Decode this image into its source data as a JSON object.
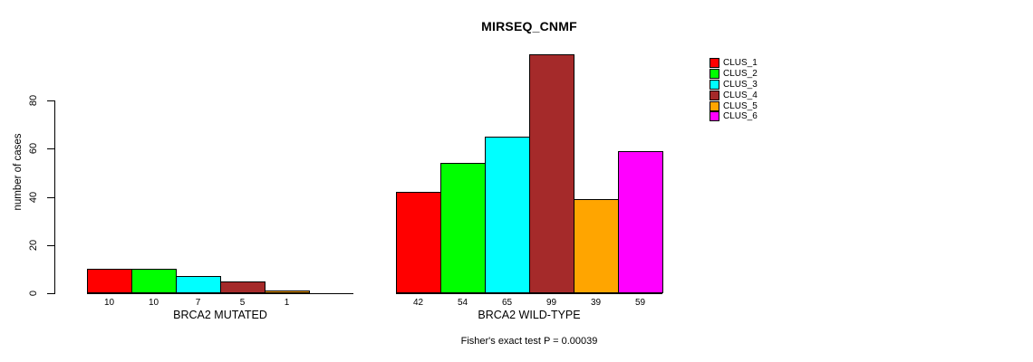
{
  "chart": {
    "title": "MIRSEQ_CNMF",
    "ylabel": "number of cases",
    "footnote": "Fisher's exact test P = 0.00039"
  },
  "legend": {
    "items": [
      {
        "label": "CLUS_1",
        "color": "#FF0000"
      },
      {
        "label": "CLUS_2",
        "color": "#00FF00"
      },
      {
        "label": "CLUS_3",
        "color": "#00FFFF"
      },
      {
        "label": "CLUS_4",
        "color": "#A52A2A"
      },
      {
        "label": "CLUS_5",
        "color": "#FFA500"
      },
      {
        "label": "CLUS_6",
        "color": "#FF00FF"
      }
    ]
  },
  "chart_data": {
    "type": "bar",
    "title": "MIRSEQ_CNMF",
    "ylabel": "number of cases",
    "xlabel": "",
    "ylim": [
      0,
      99
    ],
    "yticks": [
      0,
      20,
      40,
      60,
      80
    ],
    "grid": false,
    "legend_position": "right",
    "categories": [
      "BRCA2 MUTATED",
      "BRCA2 WILD-TYPE"
    ],
    "series": [
      {
        "name": "CLUS_1",
        "color": "#FF0000",
        "values": [
          10,
          42
        ]
      },
      {
        "name": "CLUS_2",
        "color": "#00FF00",
        "values": [
          10,
          54
        ]
      },
      {
        "name": "CLUS_3",
        "color": "#00FFFF",
        "values": [
          7,
          65
        ]
      },
      {
        "name": "CLUS_4",
        "color": "#A52A2A",
        "values": [
          5,
          99
        ]
      },
      {
        "name": "CLUS_5",
        "color": "#FFA500",
        "values": [
          1,
          39
        ]
      },
      {
        "name": "CLUS_6",
        "color": "#FF00FF",
        "values": [
          0,
          59
        ]
      }
    ],
    "bar_value_labels": [
      [
        "10",
        "10",
        "7",
        "5",
        "1",
        ""
      ],
      [
        "42",
        "54",
        "65",
        "99",
        "39",
        "59"
      ]
    ],
    "annotation": "Fisher's exact test P = 0.00039"
  }
}
